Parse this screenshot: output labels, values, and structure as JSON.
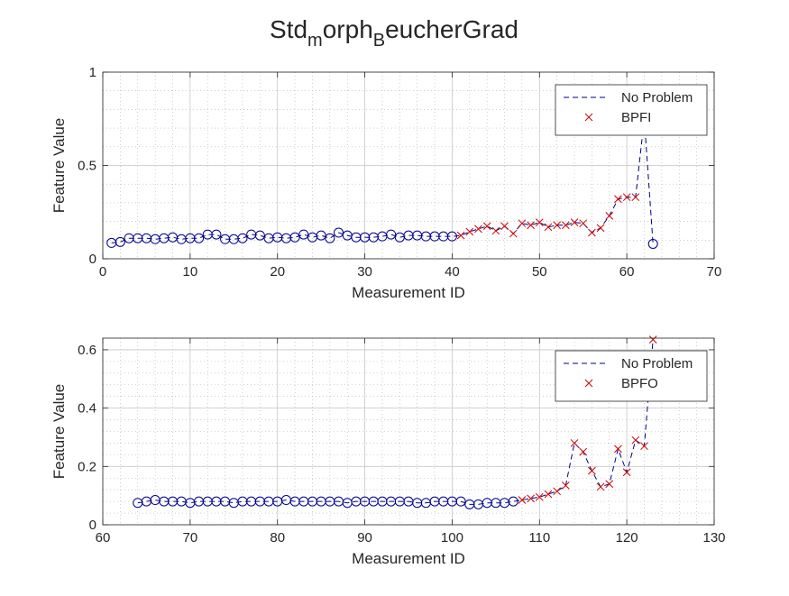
{
  "figure": {
    "title_parts": [
      "Std",
      "m",
      "orph",
      "B",
      "eucherGrad"
    ]
  },
  "chart_data": [
    {
      "type": "scatter",
      "xlabel": "Measurement ID",
      "ylabel": "Feature Value",
      "xlim": [
        0,
        70
      ],
      "ylim": [
        0,
        1
      ],
      "xticks": [
        0,
        10,
        20,
        30,
        40,
        50,
        60,
        70
      ],
      "yticks": [
        0,
        0.5,
        1
      ],
      "xtick_labels": [
        "0",
        "10",
        "20",
        "30",
        "40",
        "50",
        "60",
        "70"
      ],
      "ytick_labels": [
        "0",
        "0.5",
        "1"
      ],
      "grid": true,
      "minor_grid": true,
      "legend": {
        "position": "top-right",
        "entries": [
          "No Problem",
          "BPFI"
        ]
      },
      "colors": {
        "line": "#00008b",
        "circle": "#00008b",
        "cross": "#cc0000",
        "grid": "#b0b0b0",
        "axis": "#262626"
      },
      "series": [
        {
          "name": "No Problem",
          "marker": "circle",
          "x": [
            1,
            2,
            3,
            4,
            5,
            6,
            7,
            8,
            9,
            10,
            11,
            12,
            13,
            14,
            15,
            16,
            17,
            18,
            19,
            20,
            21,
            22,
            23,
            24,
            25,
            26,
            27,
            28,
            29,
            30,
            31,
            32,
            33,
            34,
            35,
            36,
            37,
            38,
            39,
            40,
            63
          ],
          "y": [
            0.085,
            0.09,
            0.11,
            0.11,
            0.11,
            0.105,
            0.11,
            0.115,
            0.105,
            0.11,
            0.11,
            0.13,
            0.13,
            0.105,
            0.105,
            0.11,
            0.13,
            0.125,
            0.11,
            0.115,
            0.11,
            0.115,
            0.13,
            0.115,
            0.125,
            0.11,
            0.14,
            0.125,
            0.115,
            0.115,
            0.115,
            0.12,
            0.13,
            0.115,
            0.125,
            0.125,
            0.12,
            0.12,
            0.12,
            0.12,
            0.08
          ]
        },
        {
          "name": "BPFI",
          "marker": "cross",
          "x": [
            41,
            42,
            43,
            44,
            45,
            46,
            47,
            48,
            49,
            50,
            51,
            52,
            53,
            54,
            55,
            56,
            57,
            58,
            59,
            60,
            61,
            62
          ],
          "y": [
            0.125,
            0.145,
            0.16,
            0.175,
            0.15,
            0.175,
            0.135,
            0.19,
            0.18,
            0.195,
            0.17,
            0.18,
            0.18,
            0.195,
            0.19,
            0.14,
            0.165,
            0.23,
            0.32,
            0.33,
            0.33,
            0.75
          ]
        }
      ]
    },
    {
      "type": "scatter",
      "xlabel": "Measurement ID",
      "ylabel": "Feature Value",
      "xlim": [
        60,
        130
      ],
      "ylim": [
        0,
        0.64
      ],
      "xticks": [
        60,
        70,
        80,
        90,
        100,
        110,
        120,
        130
      ],
      "yticks": [
        0,
        0.2,
        0.4,
        0.6
      ],
      "xtick_labels": [
        "60",
        "70",
        "80",
        "90",
        "100",
        "110",
        "120",
        "130"
      ],
      "ytick_labels": [
        "0",
        "0.2",
        "0.4",
        "0.6"
      ],
      "grid": true,
      "minor_grid": true,
      "legend": {
        "position": "top-right",
        "entries": [
          "No Problem",
          "BPFO"
        ]
      },
      "colors": {
        "line": "#00008b",
        "circle": "#00008b",
        "cross": "#cc0000",
        "grid": "#b0b0b0",
        "axis": "#262626"
      },
      "series": [
        {
          "name": "No Problem",
          "marker": "circle",
          "x": [
            64,
            65,
            66,
            67,
            68,
            69,
            70,
            71,
            72,
            73,
            74,
            75,
            76,
            77,
            78,
            79,
            80,
            81,
            82,
            83,
            84,
            85,
            86,
            87,
            88,
            89,
            90,
            91,
            92,
            93,
            94,
            95,
            96,
            97,
            98,
            99,
            100,
            101,
            102,
            103,
            104,
            105,
            106,
            107
          ],
          "y": [
            0.075,
            0.08,
            0.085,
            0.08,
            0.08,
            0.08,
            0.075,
            0.08,
            0.08,
            0.08,
            0.08,
            0.075,
            0.08,
            0.08,
            0.08,
            0.08,
            0.08,
            0.085,
            0.08,
            0.08,
            0.08,
            0.08,
            0.08,
            0.08,
            0.075,
            0.08,
            0.08,
            0.08,
            0.08,
            0.08,
            0.08,
            0.08,
            0.075,
            0.075,
            0.08,
            0.08,
            0.08,
            0.08,
            0.07,
            0.07,
            0.075,
            0.075,
            0.075,
            0.08
          ]
        },
        {
          "name": "BPFO",
          "marker": "cross",
          "x": [
            108,
            109,
            110,
            111,
            112,
            113,
            114,
            115,
            116,
            117,
            118,
            119,
            120,
            121,
            122,
            123
          ],
          "y": [
            0.085,
            0.09,
            0.095,
            0.105,
            0.115,
            0.135,
            0.28,
            0.25,
            0.185,
            0.13,
            0.14,
            0.26,
            0.18,
            0.29,
            0.27,
            0.635
          ]
        }
      ]
    }
  ]
}
